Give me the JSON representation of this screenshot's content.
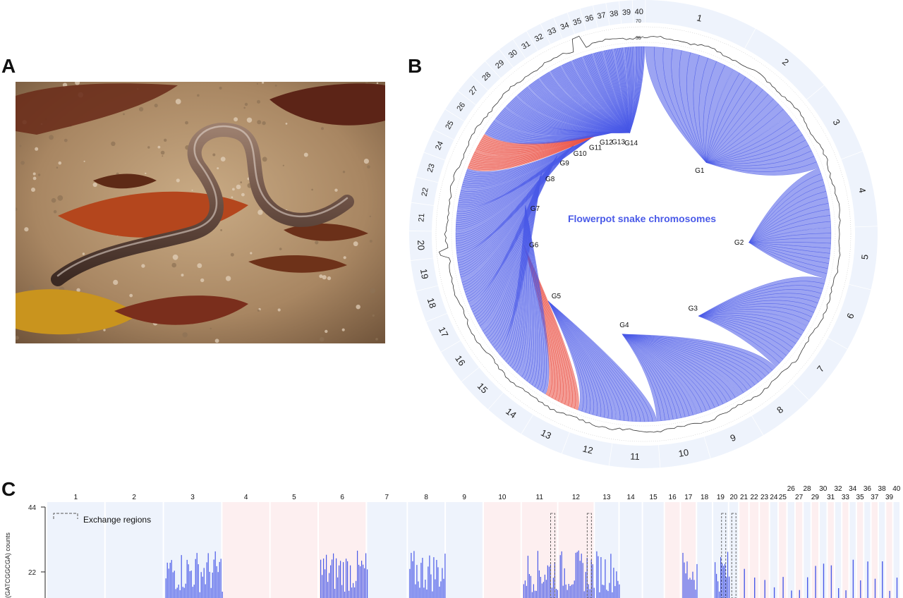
{
  "panels": {
    "a": {
      "letter": "A"
    },
    "b": {
      "letter": "B",
      "center_title": "Flowerpot snake chromosomes",
      "chromosome_labels": [
        "1",
        "2",
        "3",
        "4",
        "5",
        "6",
        "7",
        "8",
        "9",
        "10",
        "11",
        "12",
        "13",
        "14",
        "15",
        "16",
        "17",
        "18",
        "19",
        "20",
        "21",
        "22",
        "23",
        "24",
        "25",
        "26",
        "27",
        "28",
        "29",
        "30",
        "31",
        "32",
        "33",
        "34",
        "35",
        "36",
        "37",
        "38",
        "39",
        "40"
      ],
      "group_labels": [
        "G1",
        "G2",
        "G3",
        "G4",
        "G5",
        "G6",
        "G7",
        "G8",
        "G9",
        "G10",
        "G11",
        "G12",
        "G13",
        "G14"
      ],
      "track_ticks": [
        "70",
        "35"
      ],
      "colors": {
        "synteny": "#4a5ae8",
        "highlight": "#ea4a3e",
        "ring_band": "#eef3fc",
        "title": "#4a5ae8"
      }
    },
    "c": {
      "letter": "C",
      "ylabel": "(GATCGGCGA) counts",
      "yticks": [
        "44",
        "22"
      ],
      "legend": "Exchange regions",
      "chromosome_labels": [
        "1",
        "2",
        "3",
        "4",
        "5",
        "6",
        "7",
        "8",
        "9",
        "10",
        "11",
        "12",
        "13",
        "14",
        "15",
        "16",
        "17",
        "18",
        "19",
        "20",
        "21",
        "22",
        "23",
        "24",
        "25",
        "26",
        "27",
        "28",
        "29",
        "30",
        "31",
        "32",
        "33",
        "34",
        "35",
        "36",
        "37",
        "38",
        "39",
        "40"
      ],
      "colors": {
        "bars": "#4a5ae8",
        "band_blue": "#eef3fc",
        "band_red": "#fdeff0"
      }
    }
  }
}
